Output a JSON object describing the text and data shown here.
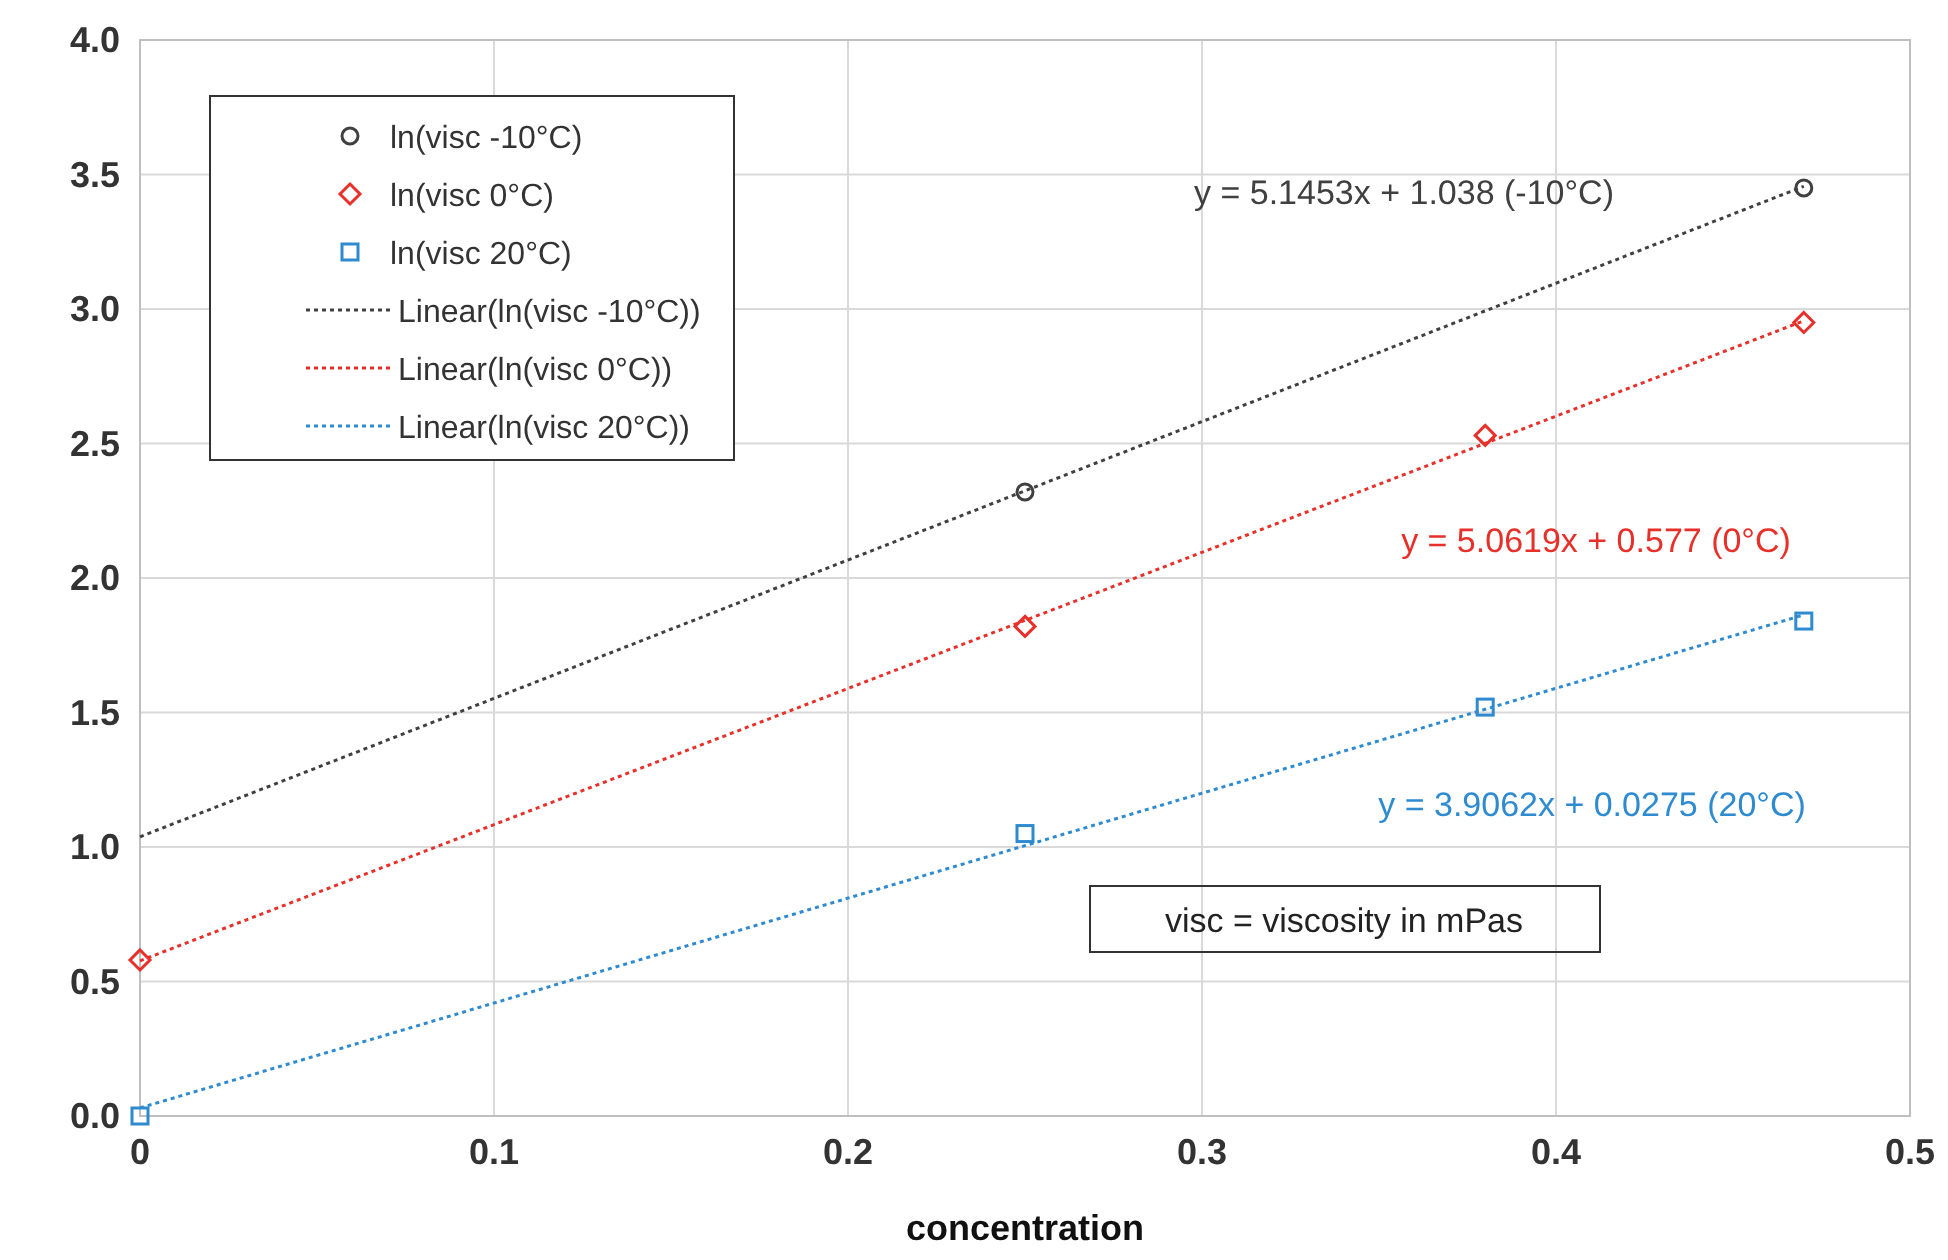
{
  "chart_data": {
    "type": "scatter",
    "xlabel": "concentration",
    "xlim": [
      0,
      0.5
    ],
    "xticks": [
      0,
      0.1,
      0.2,
      0.3,
      0.4,
      0.5
    ],
    "ylim": [
      0,
      4
    ],
    "yticks": [
      {
        "value": 0,
        "label": "0.0"
      },
      {
        "value": 0.5,
        "label": "0.5"
      },
      {
        "value": 1,
        "label": "1.0"
      },
      {
        "value": 1.5,
        "label": "1.5"
      },
      {
        "value": 2,
        "label": "2.0"
      },
      {
        "value": 2.5,
        "label": "2.5"
      },
      {
        "value": 3,
        "label": "3.0"
      },
      {
        "value": 3.5,
        "label": "3.5"
      },
      {
        "value": 4,
        "label": "4.0"
      }
    ],
    "grid": true,
    "legend": "top left",
    "series": [
      {
        "name": "ln(visc -10°C)",
        "marker": "circle",
        "color": "#404040",
        "x": [
          0.25,
          0.47
        ],
        "values": [
          2.32,
          3.45
        ]
      },
      {
        "name": "ln(visc 0°C)",
        "marker": "diamond",
        "color": "#e8302a",
        "x": [
          0,
          0.25,
          0.38,
          0.47
        ],
        "values": [
          0.58,
          1.82,
          2.53,
          2.95
        ]
      },
      {
        "name": "ln(visc 20°C)",
        "marker": "square",
        "color": "#2e8bd0",
        "x": [
          0,
          0.25,
          0.38,
          0.47
        ],
        "values": [
          0.0,
          1.05,
          1.52,
          1.84
        ]
      },
      {
        "name": "Linear(ln(visc -10°C))",
        "type": "line",
        "marker": "none",
        "line_style": "dotted",
        "color": "#404040",
        "x": [
          0,
          0.47
        ],
        "values": [
          1.038,
          3.456
        ]
      },
      {
        "name": "Linear(ln(visc 0°C))",
        "type": "line",
        "marker": "none",
        "line_style": "dotted",
        "color": "#e8302a",
        "x": [
          0,
          0.47
        ],
        "values": [
          0.577,
          2.956
        ]
      },
      {
        "name": "Linear(ln(visc 20°C))",
        "type": "line",
        "marker": "none",
        "line_style": "dotted",
        "color": "#2e8bd0",
        "x": [
          0,
          0.47
        ],
        "values": [
          0.03,
          1.863
        ]
      }
    ],
    "annotations": [
      "y = 5.1453x + 1.038 (-10°C)",
      "y = 5.0619x + 0.577 (0°C)",
      "y = 3.9062x + 0.0275 (20°C)",
      "visc = viscosity in mPas"
    ]
  }
}
